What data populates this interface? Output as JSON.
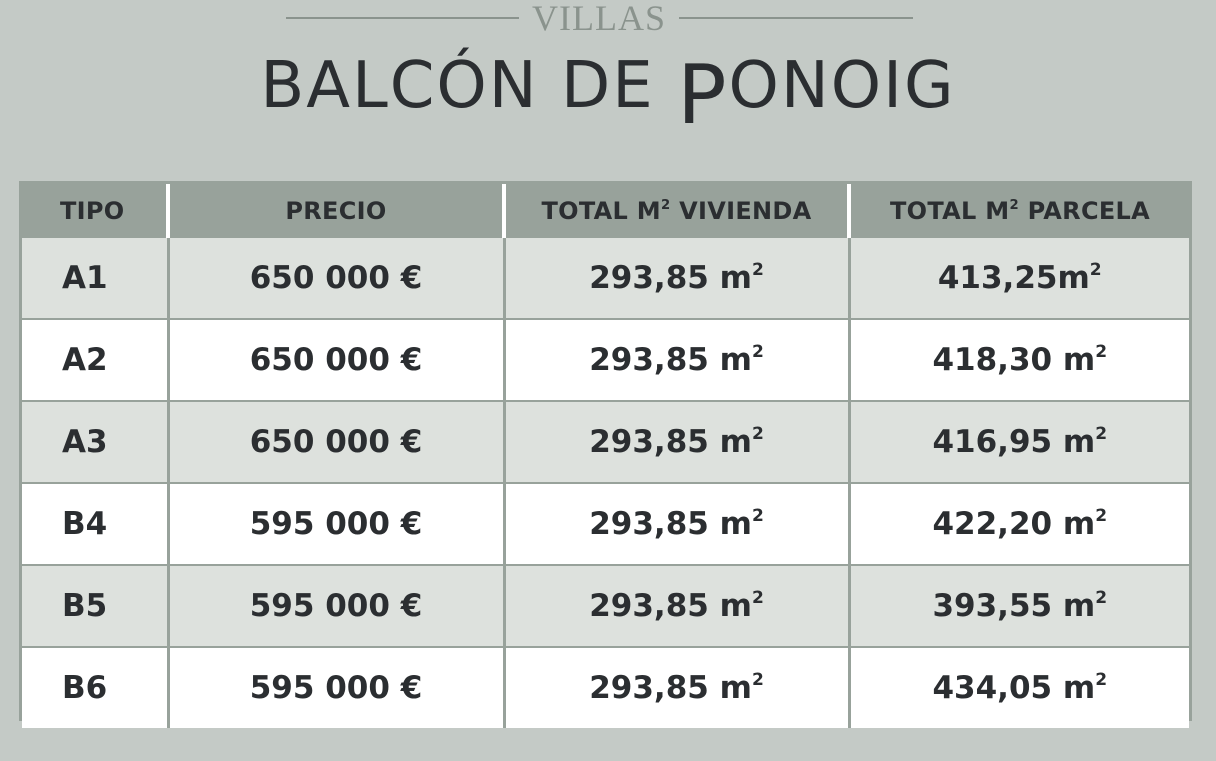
{
  "header": {
    "subtitle": "VILLAS",
    "title_prefix": "BALCÓN DE ",
    "title_p": "P",
    "title_suffix": "ONOIG"
  },
  "table": {
    "headers": {
      "tipo": "TIPO",
      "precio": "PRECIO",
      "vivienda_prefix": "TOTAL M",
      "vivienda_sup": "2",
      "vivienda_suffix": " VIVIENDA",
      "parcela_prefix": "TOTAL M",
      "parcela_sup": "2",
      "parcela_suffix": " PARCELA"
    },
    "unit_sup": "2",
    "rows": [
      {
        "tipo": "A1",
        "precio": "650 000 €",
        "vivienda": "293,85 m",
        "parcela": "413,25m"
      },
      {
        "tipo": "A2",
        "precio": "650 000 €",
        "vivienda": "293,85 m",
        "parcela": "418,30 m"
      },
      {
        "tipo": "A3",
        "precio": "650 000 €",
        "vivienda": "293,85 m",
        "parcela": "416,95 m"
      },
      {
        "tipo": "B4",
        "precio": "595 000 €",
        "vivienda": "293,85 m",
        "parcela": "422,20 m"
      },
      {
        "tipo": "B5",
        "precio": "595 000 €",
        "vivienda": "293,85 m",
        "parcela": "393,55 m"
      },
      {
        "tipo": "B6",
        "precio": "595 000 €",
        "vivienda": "293,85 m",
        "parcela": "434,05 m"
      }
    ]
  }
}
